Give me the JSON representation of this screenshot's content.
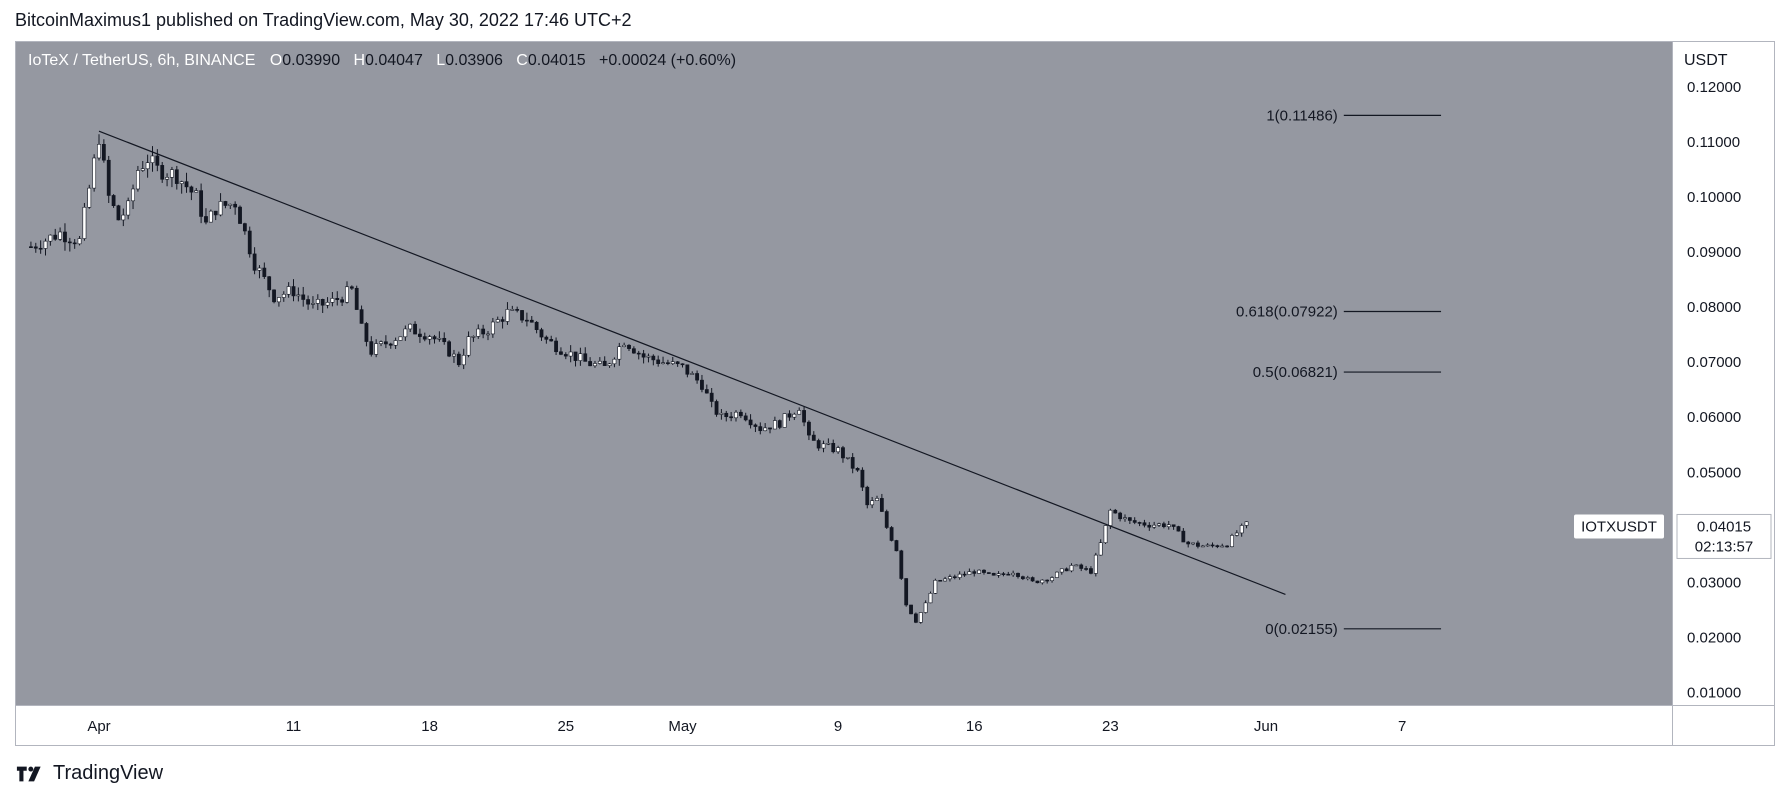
{
  "header": {
    "text": "BitcoinMaximus1 published on TradingView.com, May 30, 2022 17:46 UTC+2"
  },
  "legend": {
    "symbol": "IoTeX / TetherUS, 6h, BINANCE",
    "open_label": "O",
    "open": "0.03990",
    "high_label": "H",
    "high": "0.04047",
    "low_label": "L",
    "low": "0.03906",
    "close_label": "C",
    "close": "0.04015",
    "change": "+0.00024 (+0.60%)"
  },
  "currency": "USDT",
  "footer": {
    "brand": "TradingView"
  },
  "colors": {
    "background": "#9598a1",
    "candle_up": "#ffffff",
    "candle_down": "#131722",
    "line": "#131722"
  },
  "chart_data": {
    "type": "candlestick",
    "title": "IoTeX / TetherUS, 6h, BINANCE",
    "ylabel": "USDT",
    "ylim": [
      0.0077,
      0.1282
    ],
    "yticks": [
      "0.12000",
      "0.11000",
      "0.10000",
      "0.09000",
      "0.08000",
      "0.07000",
      "0.06000",
      "0.05000",
      "0.04000",
      "0.03000",
      "0.02000",
      "0.01000"
    ],
    "xticks": [
      "Apr",
      "11",
      "18",
      "25",
      "May",
      "9",
      "16",
      "23",
      "Jun",
      "7"
    ],
    "x_tick_days": [
      0,
      10,
      17,
      24,
      30,
      38,
      45,
      52,
      60,
      67
    ],
    "date_range": {
      "start": "2022-03-29",
      "end": "2022-05-30"
    },
    "price_path": [
      [
        -3.5,
        0.091
      ],
      [
        -2,
        0.0935
      ],
      [
        -1,
        0.092
      ],
      [
        0,
        0.111
      ],
      [
        0.5,
        0.1
      ],
      [
        1,
        0.096
      ],
      [
        1.5,
        0.098
      ],
      [
        2,
        0.105
      ],
      [
        2.5,
        0.107
      ],
      [
        3,
        0.105
      ],
      [
        4,
        0.104
      ],
      [
        5,
        0.1
      ],
      [
        5.5,
        0.095
      ],
      [
        6,
        0.098
      ],
      [
        7,
        0.099
      ],
      [
        8,
        0.088
      ],
      [
        8.5,
        0.085
      ],
      [
        9,
        0.082
      ],
      [
        10,
        0.083
      ],
      [
        11,
        0.08
      ],
      [
        12,
        0.081
      ],
      [
        13,
        0.083
      ],
      [
        13.5,
        0.076
      ],
      [
        14,
        0.072
      ],
      [
        15,
        0.074
      ],
      [
        16,
        0.076
      ],
      [
        17,
        0.075
      ],
      [
        18,
        0.072
      ],
      [
        18.5,
        0.07
      ],
      [
        19,
        0.074
      ],
      [
        20,
        0.076
      ],
      [
        21,
        0.079
      ],
      [
        22,
        0.078
      ],
      [
        23,
        0.074
      ],
      [
        24,
        0.072
      ],
      [
        25,
        0.07
      ],
      [
        26,
        0.069
      ],
      [
        27,
        0.074
      ],
      [
        28,
        0.071
      ],
      [
        29,
        0.07
      ],
      [
        30,
        0.069
      ],
      [
        31,
        0.066
      ],
      [
        31.5,
        0.062
      ],
      [
        32,
        0.06
      ],
      [
        33,
        0.061
      ],
      [
        34,
        0.058
      ],
      [
        35,
        0.059
      ],
      [
        36,
        0.062
      ],
      [
        36.5,
        0.056
      ],
      [
        37,
        0.055
      ],
      [
        38,
        0.054
      ],
      [
        39,
        0.05
      ],
      [
        39.5,
        0.044
      ],
      [
        40,
        0.045
      ],
      [
        40.5,
        0.04
      ],
      [
        41,
        0.036
      ],
      [
        41.5,
        0.026
      ],
      [
        42,
        0.023
      ],
      [
        42.5,
        0.026
      ],
      [
        43,
        0.03
      ],
      [
        44,
        0.031
      ],
      [
        45,
        0.032
      ],
      [
        46,
        0.031
      ],
      [
        47,
        0.032
      ],
      [
        48,
        0.03
      ],
      [
        49,
        0.031
      ],
      [
        50,
        0.033
      ],
      [
        51,
        0.032
      ],
      [
        51.5,
        0.037
      ],
      [
        52,
        0.043
      ],
      [
        53,
        0.041
      ],
      [
        54,
        0.0405
      ],
      [
        55,
        0.0405
      ],
      [
        56,
        0.037
      ],
      [
        57,
        0.0365
      ],
      [
        58,
        0.037
      ],
      [
        58.5,
        0.039
      ],
      [
        59,
        0.0405
      ]
    ],
    "last_bar_day": 59,
    "trendline": {
      "start": {
        "date": "2022-03-29",
        "price": 0.112
      },
      "end": {
        "date": "2022-05-29",
        "price": 0.0278
      }
    },
    "fibonacci": {
      "line_start_day": 64,
      "line_end_day": 69,
      "levels": [
        {
          "label": "1(0.11486)",
          "price": 0.11486
        },
        {
          "label": "0.618(0.07922)",
          "price": 0.07922
        },
        {
          "label": "0.5(0.06821)",
          "price": 0.06821
        },
        {
          "label": "0(0.02155)",
          "price": 0.02155
        }
      ]
    },
    "last_price": {
      "symbol": "IOTXUSDT",
      "price": "0.04015",
      "countdown": "02:13:57"
    }
  }
}
